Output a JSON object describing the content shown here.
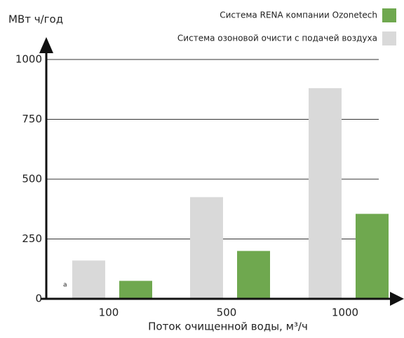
{
  "chart_data": {
    "type": "bar",
    "y_axis_label": "МВт  ч/год",
    "x_axis_label": "Поток очищенной воды, м³/ч",
    "annotation": "а",
    "categories": [
      "100",
      "500",
      "1000"
    ],
    "series": [
      {
        "name": "Система озоновой очисти с подачей воздуха",
        "color": "#d9d9d9",
        "values": [
          160,
          425,
          880
        ]
      },
      {
        "name": "Система RENA компании Ozonetech",
        "color": "#6fa84f",
        "values": [
          75,
          200,
          355
        ]
      }
    ],
    "ylim": [
      0,
      1000
    ],
    "yticks": [
      0,
      250,
      500,
      750,
      1000
    ],
    "grid": true,
    "legend": "top-right"
  }
}
